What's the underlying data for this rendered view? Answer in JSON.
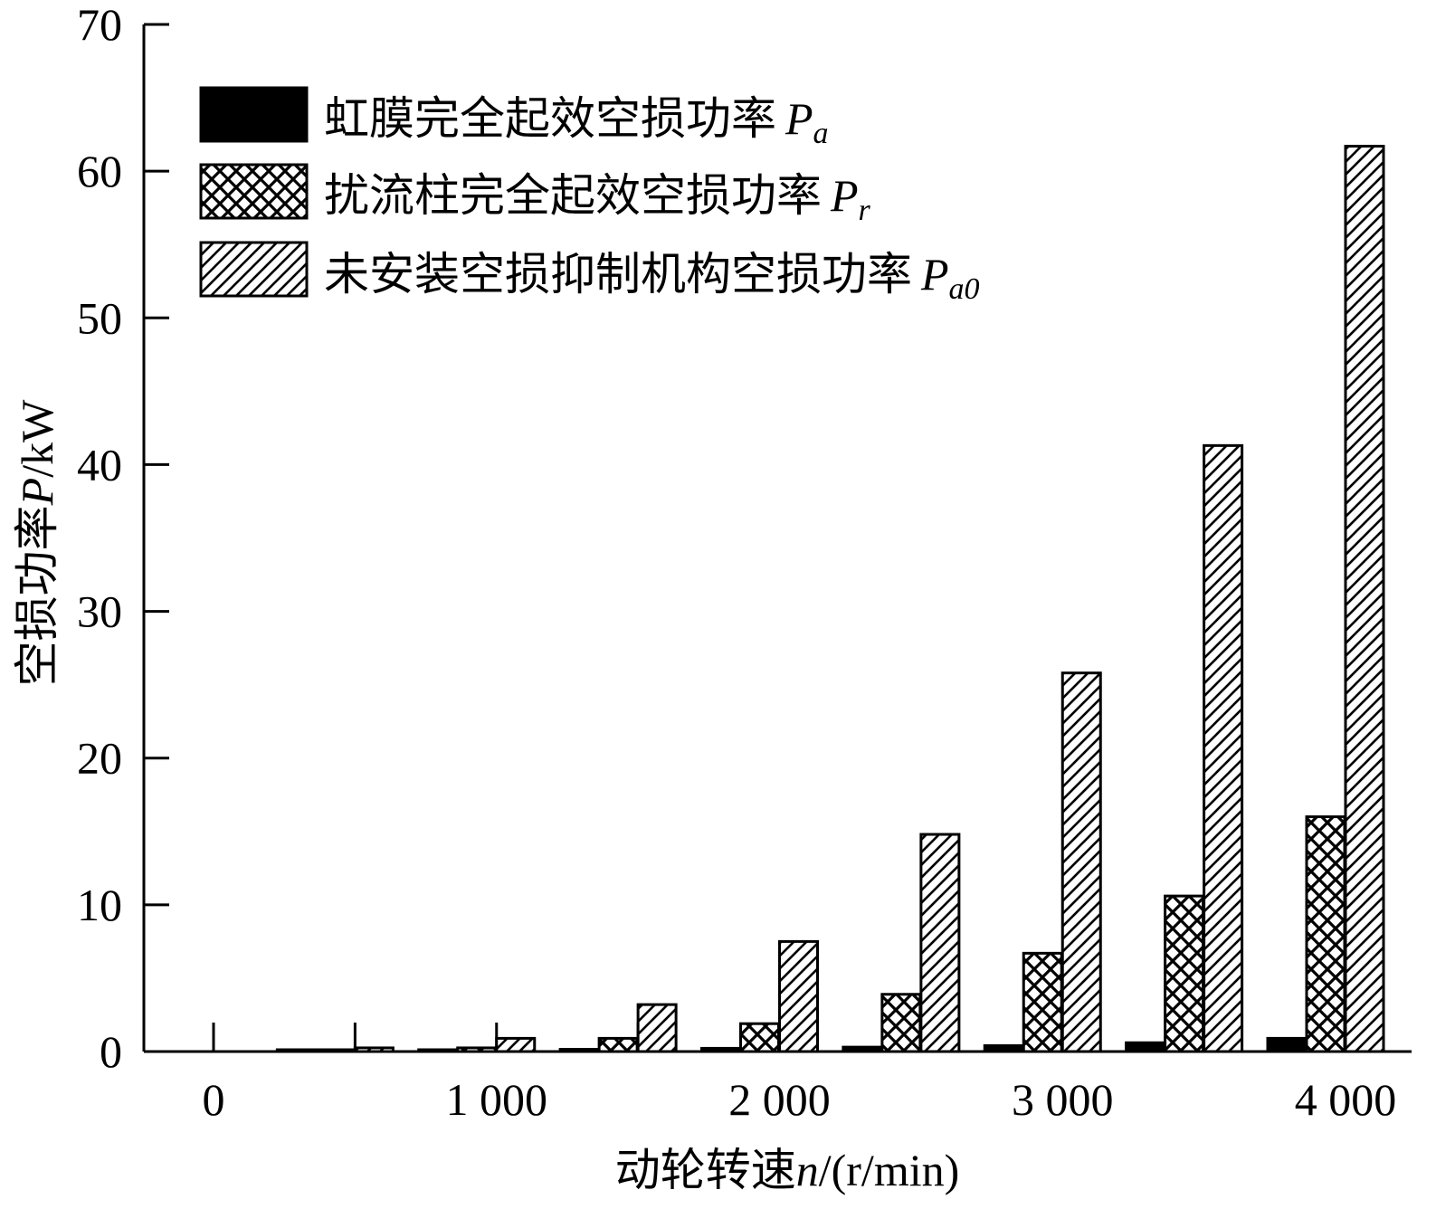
{
  "chart_data": {
    "type": "bar",
    "xlabel_main": "动轮转速",
    "xlabel_var": "n",
    "xlabel_unit": "/(r/min)",
    "ylabel_main": "空损功率",
    "ylabel_var": "P",
    "ylabel_unit": "/kW",
    "ylim": [
      0,
      70
    ],
    "yticks": [
      "0",
      "10",
      "20",
      "30",
      "40",
      "50",
      "60",
      "70"
    ],
    "xtick_labels": [
      "0",
      "1 000",
      "2 000",
      "3 000",
      "4 000"
    ],
    "x_positions": [
      0,
      500,
      1000,
      1500,
      2000,
      2500,
      3000,
      3500,
      4000
    ],
    "series": [
      {
        "name": "虹膜完全起效空损功率",
        "symbol": "P",
        "subscript": "a",
        "pattern": "solid",
        "values": [
          0,
          0.02,
          0.1,
          0.15,
          0.22,
          0.3,
          0.4,
          0.6,
          0.9
        ]
      },
      {
        "name": "扰流柱完全起效空损功率",
        "symbol": "P",
        "subscript": "r",
        "pattern": "crosshatch",
        "values": [
          0,
          0.1,
          0.25,
          0.9,
          1.9,
          3.9,
          6.7,
          10.6,
          16.0
        ]
      },
      {
        "name": "未安装空损抑制机构空损功率",
        "symbol": "P",
        "subscript": "a0",
        "pattern": "diagonal",
        "values": [
          0,
          0.25,
          0.9,
          3.2,
          7.5,
          14.8,
          25.8,
          41.3,
          61.7
        ]
      }
    ],
    "legend_position": "top-left",
    "grid": false
  }
}
